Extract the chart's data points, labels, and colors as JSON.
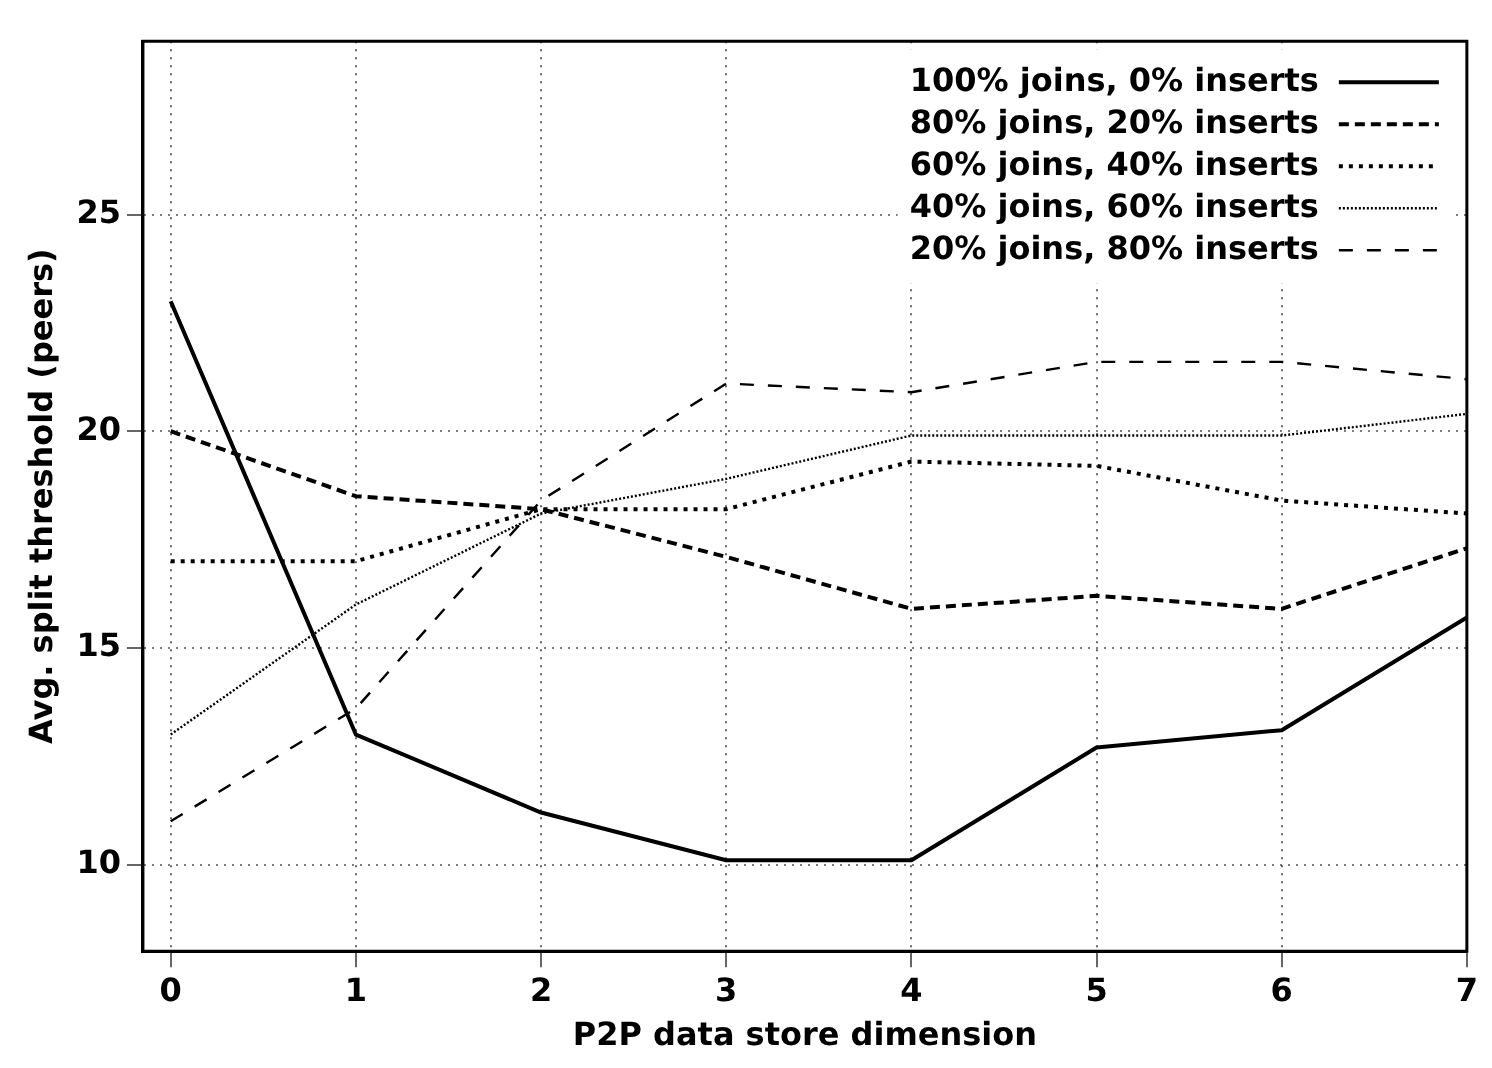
{
  "chart_data": {
    "type": "line",
    "xlabel": "P2P data store dimension",
    "ylabel": "Avg. split threshold (peers)",
    "x": [
      0,
      1,
      2,
      3,
      4,
      5,
      6,
      7
    ],
    "xlim": [
      -0.15,
      7
    ],
    "xticks": [
      0,
      1,
      2,
      3,
      4,
      5,
      6,
      7
    ],
    "ylim": [
      8,
      29
    ],
    "yticks": [
      10,
      15,
      20,
      25
    ],
    "grid": true,
    "legend": "top right",
    "marker": "none",
    "series": [
      {
        "name": "100% joins, 0% inserts",
        "color": "#000000",
        "line_style": "solid",
        "values": [
          23,
          13,
          11.2,
          10.1,
          10.1,
          12.7,
          13.1,
          15.7
        ]
      },
      {
        "name": "80% joins, 20% inserts",
        "color": "#000000",
        "line_style": "dashed",
        "values": [
          20,
          18.5,
          18.2,
          17.1,
          15.9,
          16.2,
          15.9,
          17.3
        ]
      },
      {
        "name": "60% joins, 40% inserts",
        "color": "#000000",
        "line_style": "dotted",
        "values": [
          17,
          17,
          18.2,
          18.2,
          19.3,
          19.2,
          18.4,
          18.1
        ]
      },
      {
        "name": "40% joins, 60% inserts",
        "color": "#000000",
        "line_style": "dotted",
        "values": [
          13,
          16,
          18.1,
          18.9,
          19.9,
          19.9,
          19.9,
          20.4
        ]
      },
      {
        "name": "20% joins, 80% inserts",
        "color": "#000000",
        "line_style": "dashed",
        "values": [
          11,
          13.6,
          18.4,
          21.1,
          20.9,
          21.6,
          21.6,
          21.2
        ]
      }
    ]
  }
}
